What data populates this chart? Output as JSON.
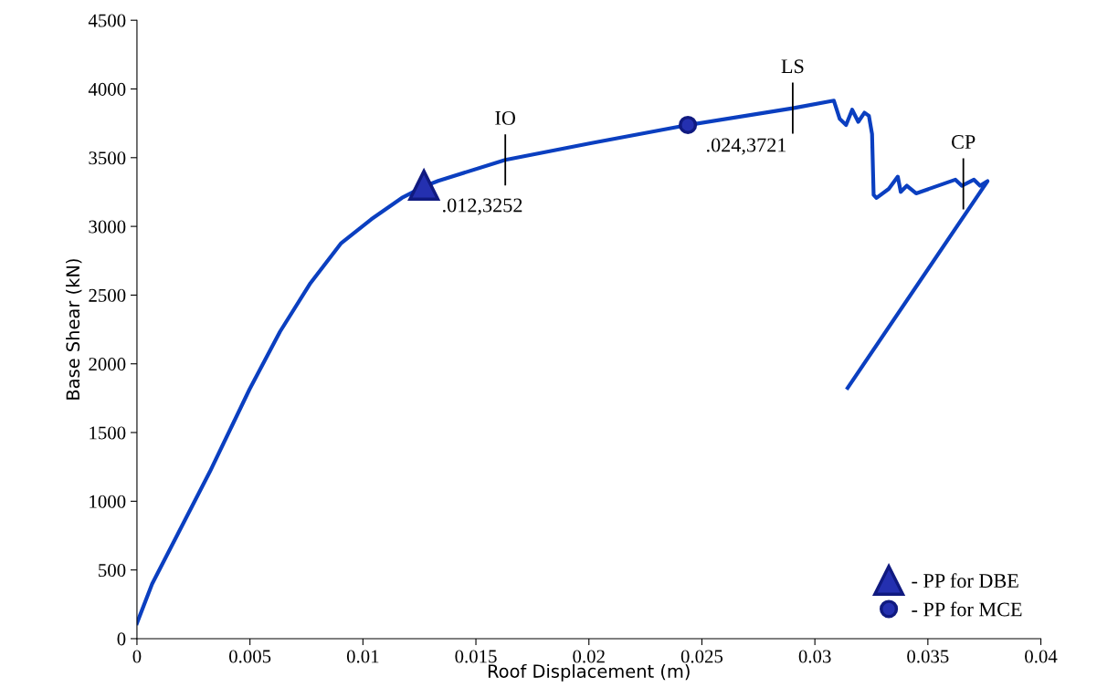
{
  "chart_data": {
    "type": "line",
    "xlabel": "Roof Displacement (m)",
    "ylabel": "Base Shear (kN)",
    "xlim": [
      0,
      0.04
    ],
    "xticks": [
      0,
      0.005,
      0.01,
      0.015,
      0.02,
      0.025,
      0.03,
      0.035,
      0.04
    ],
    "ylim": [
      0,
      4500
    ],
    "yticks": [
      0,
      500,
      1000,
      1500,
      2000,
      2500,
      3000,
      3500,
      4000,
      4500
    ],
    "grid": false,
    "legend": "bottom right",
    "series": [
      {
        "color": "#0b3fc0",
        "x": [
          0,
          0.00067,
          0.00323,
          0.00498,
          0.00633,
          0.00768,
          0.00902,
          0.01037,
          0.01172,
          0.0127,
          0.01333,
          0.0163,
          0.02007,
          0.02438,
          0.02902,
          0.03084,
          0.0311,
          0.03138,
          0.03165,
          0.03192,
          0.03219,
          0.03239,
          0.03253,
          0.0326,
          0.03273,
          0.03327,
          0.03367,
          0.0338,
          0.03407,
          0.03448,
          0.03622,
          0.0365,
          0.03704,
          0.03731,
          0.03764,
          0.03145
        ],
        "values": [
          113,
          398,
          1216,
          1814,
          2234,
          2588,
          2875,
          3052,
          3207,
          3290,
          3331,
          3484,
          3605,
          3738,
          3860,
          3915,
          3782,
          3738,
          3849,
          3761,
          3827,
          3805,
          3672,
          3229,
          3207,
          3273,
          3362,
          3251,
          3296,
          3240,
          3340,
          3296,
          3340,
          3296,
          3329,
          1825
        ]
      },
      {
        "type": "scatter",
        "name": "- PP for DBE",
        "color": "#2430b0",
        "marker": "triangle",
        "x": [
          0.0127
        ],
        "values": [
          3300
        ]
      },
      {
        "type": "scatter",
        "name": "- PP for MCE",
        "color": "#2430b0",
        "marker": "circle",
        "x": [
          0.02438
        ],
        "values": [
          3738
        ]
      }
    ],
    "annotations": [
      {
        "text": ".012,3252",
        "x": 0.0127,
        "y": 3300
      },
      {
        "text": ".024,3721",
        "x": 0.02438,
        "y": 3738
      },
      {
        "text": "IO",
        "x": 0.0163,
        "y": 3484
      },
      {
        "text": "LS",
        "x": 0.02902,
        "y": 3860
      },
      {
        "text": "CP",
        "x": 0.03657,
        "y": 3310
      }
    ]
  }
}
